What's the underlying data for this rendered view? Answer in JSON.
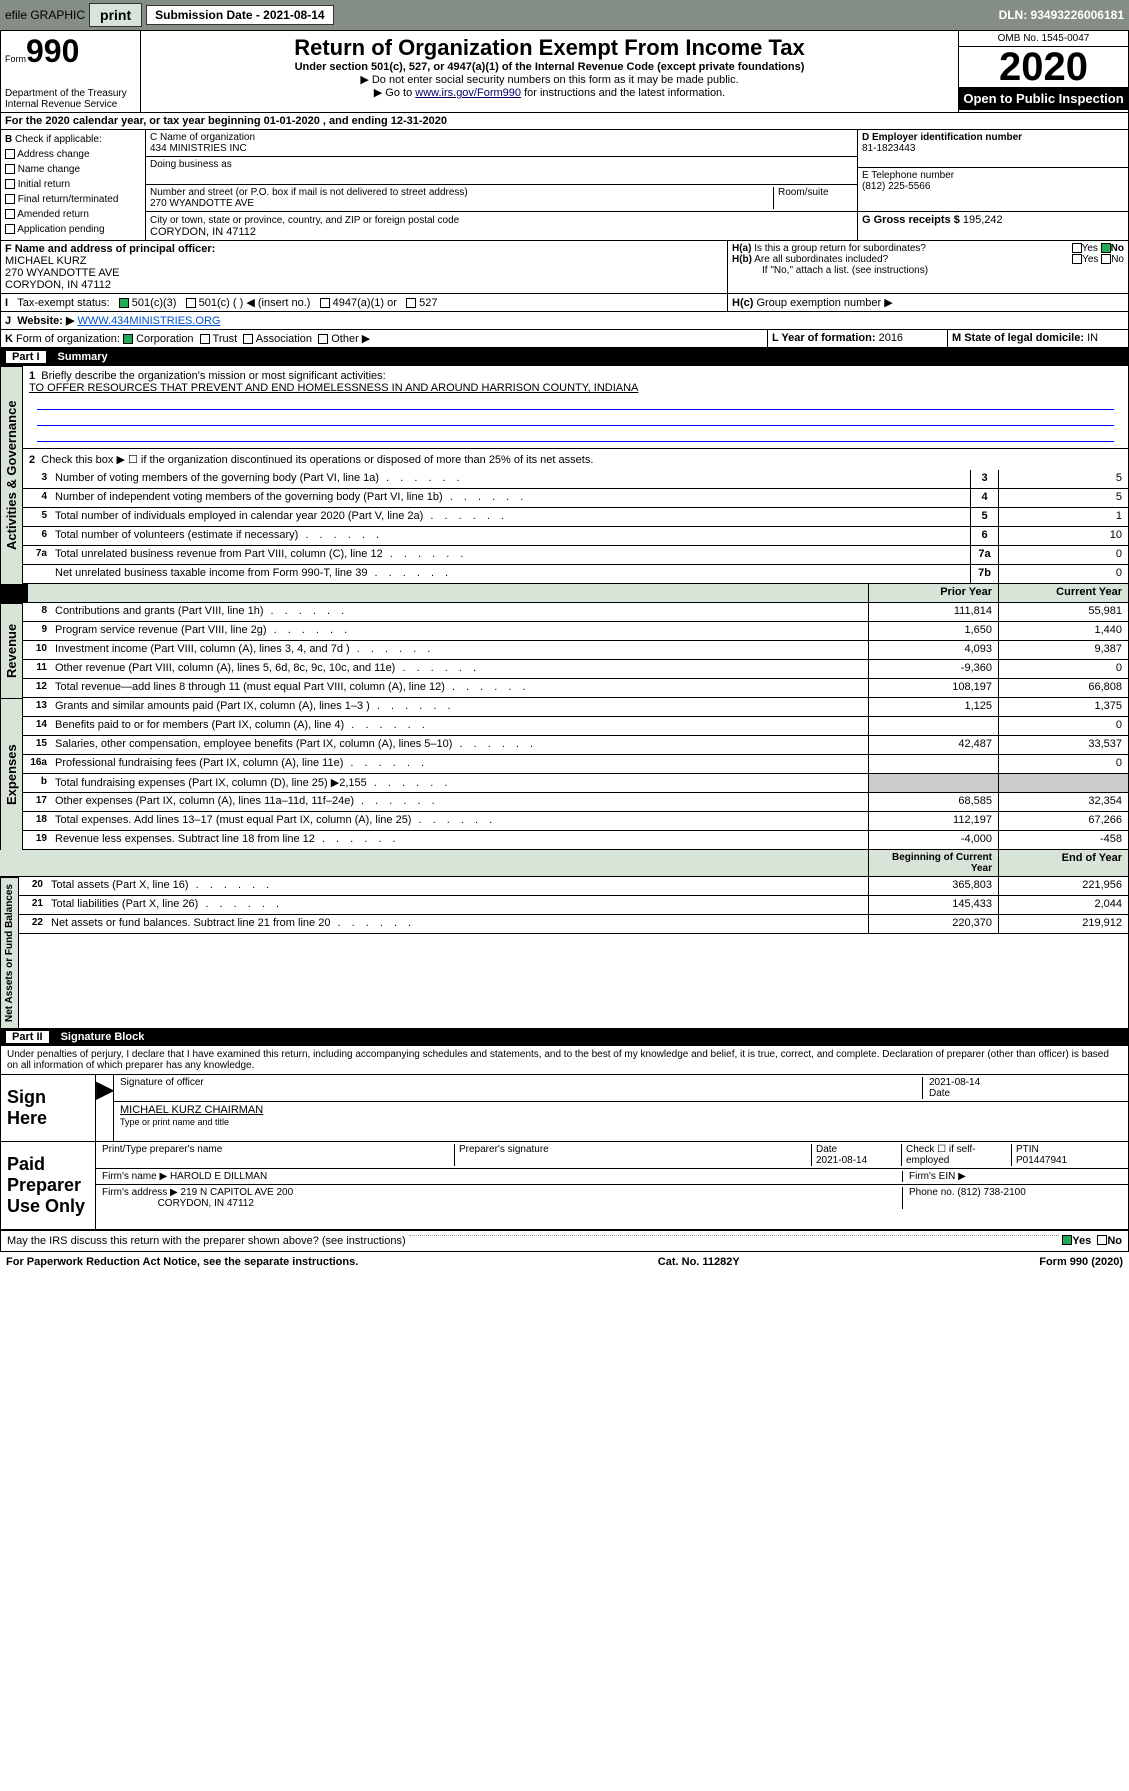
{
  "toolbar": {
    "efile": "efile GRAPHIC",
    "print": "print",
    "subdate_label": "Submission Date - 2021-08-14",
    "dln": "DLN: 93493226006181"
  },
  "header": {
    "form": "990",
    "form_prefix": "Form",
    "dept": "Department of the Treasury\nInternal Revenue Service",
    "title": "Return of Organization Exempt From Income Tax",
    "sub1": "Under section 501(c), 527, or 4947(a)(1) of the Internal Revenue Code (except private foundations)",
    "sub2": "▶ Do not enter social security numbers on this form as it may be made public.",
    "sub3_pre": "▶ Go to ",
    "sub3_link": "www.irs.gov/Form990",
    "sub3_post": " for instructions and the latest information.",
    "omb": "OMB No. 1545-0047",
    "year": "2020",
    "open": "Open to Public Inspection"
  },
  "a": {
    "line": "For the 2020 calendar year, or tax year beginning 01-01-2020   , and ending 12-31-2020"
  },
  "b": {
    "label": "Check if applicable:",
    "items": [
      "Address change",
      "Name change",
      "Initial return",
      "Final return/terminated",
      "Amended return",
      "Application pending"
    ]
  },
  "c": {
    "name_lbl": "C Name of organization",
    "name": "434 MINISTRIES INC",
    "dba_lbl": "Doing business as",
    "dba": "",
    "addr_lbl": "Number and street (or P.O. box if mail is not delivered to street address)",
    "room_lbl": "Room/suite",
    "addr": "270 WYANDOTTE AVE",
    "city_lbl": "City or town, state or province, country, and ZIP or foreign postal code",
    "city": "CORYDON, IN  47112"
  },
  "d": {
    "lbl": "D Employer identification number",
    "val": "81-1823443"
  },
  "e": {
    "lbl": "E Telephone number",
    "val": "(812) 225-5566"
  },
  "g": {
    "lbl": "G Gross receipts $",
    "val": "195,242"
  },
  "f": {
    "lbl": "F  Name and address of principal officer:",
    "val": "MICHAEL KURZ\n270 WYANDOTTE AVE\nCORYDON, IN  47112"
  },
  "h": {
    "a": "Is this a group return for subordinates?",
    "b": "Are all subordinates included?",
    "note": "If \"No,\" attach a list. (see instructions)",
    "c": "Group exemption number ▶",
    "ha_ans": "No"
  },
  "i": {
    "lbl": "Tax-exempt status:",
    "opts": [
      "501(c)(3)",
      "501(c) (  ) ◀ (insert no.)",
      "4947(a)(1) or",
      "527"
    ]
  },
  "j": {
    "lbl": "Website: ▶",
    "val": "WWW.434MINISTRIES.ORG"
  },
  "k": {
    "lbl": "Form of organization:",
    "opts": [
      "Corporation",
      "Trust",
      "Association",
      "Other ▶"
    ]
  },
  "l": {
    "lbl": "L Year of formation:",
    "val": "2016"
  },
  "m": {
    "lbl": "M State of legal domicile:",
    "val": "IN"
  },
  "part1": {
    "title": "Part I",
    "sub": "Summary"
  },
  "summary": {
    "l1_lbl": "Briefly describe the organization's mission or most significant activities:",
    "l1": "TO OFFER RESOURCES THAT PREVENT AND END HOMELESSNESS IN AND AROUND HARRISON COUNTY, INDIANA",
    "l2": "Check this box ▶ ☐  if the organization discontinued its operations or disposed of more than 25% of its net assets.",
    "lines": [
      {
        "n": "3",
        "t": "Number of voting members of the governing body (Part VI, line 1a)",
        "box": "3",
        "v": "5"
      },
      {
        "n": "4",
        "t": "Number of independent voting members of the governing body (Part VI, line 1b)",
        "box": "4",
        "v": "5"
      },
      {
        "n": "5",
        "t": "Total number of individuals employed in calendar year 2020 (Part V, line 2a)",
        "box": "5",
        "v": "1"
      },
      {
        "n": "6",
        "t": "Total number of volunteers (estimate if necessary)",
        "box": "6",
        "v": "10"
      },
      {
        "n": "7a",
        "t": "Total unrelated business revenue from Part VIII, column (C), line 12",
        "box": "7a",
        "v": "0"
      },
      {
        "n": "",
        "t": "Net unrelated business taxable income from Form 990-T, line 39",
        "box": "7b",
        "v": "0"
      }
    ],
    "col_hdr1": "Prior Year",
    "col_hdr2": "Current Year",
    "revenue": [
      {
        "n": "8",
        "t": "Contributions and grants (Part VIII, line 1h)",
        "p": "111,814",
        "c": "55,981"
      },
      {
        "n": "9",
        "t": "Program service revenue (Part VIII, line 2g)",
        "p": "1,650",
        "c": "1,440"
      },
      {
        "n": "10",
        "t": "Investment income (Part VIII, column (A), lines 3, 4, and 7d )",
        "p": "4,093",
        "c": "9,387"
      },
      {
        "n": "11",
        "t": "Other revenue (Part VIII, column (A), lines 5, 6d, 8c, 9c, 10c, and 11e)",
        "p": "-9,360",
        "c": "0"
      },
      {
        "n": "12",
        "t": "Total revenue—add lines 8 through 11 (must equal Part VIII, column (A), line 12)",
        "p": "108,197",
        "c": "66,808"
      }
    ],
    "expenses": [
      {
        "n": "13",
        "t": "Grants and similar amounts paid (Part IX, column (A), lines 1–3 )",
        "p": "1,125",
        "c": "1,375"
      },
      {
        "n": "14",
        "t": "Benefits paid to or for members (Part IX, column (A), line 4)",
        "p": "",
        "c": "0"
      },
      {
        "n": "15",
        "t": "Salaries, other compensation, employee benefits (Part IX, column (A), lines 5–10)",
        "p": "42,487",
        "c": "33,537"
      },
      {
        "n": "16a",
        "t": "Professional fundraising fees (Part IX, column (A), line 11e)",
        "p": "",
        "c": "0"
      },
      {
        "n": "b",
        "t": "Total fundraising expenses (Part IX, column (D), line 25) ▶2,155",
        "p": "—",
        "c": "—"
      },
      {
        "n": "17",
        "t": "Other expenses (Part IX, column (A), lines 11a–11d, 11f–24e)",
        "p": "68,585",
        "c": "32,354"
      },
      {
        "n": "18",
        "t": "Total expenses. Add lines 13–17 (must equal Part IX, column (A), line 25)",
        "p": "112,197",
        "c": "67,266"
      },
      {
        "n": "19",
        "t": "Revenue less expenses. Subtract line 18 from line 12",
        "p": "-4,000",
        "c": "-458"
      }
    ],
    "col_hdr3": "Beginning of Current Year",
    "col_hdr4": "End of Year",
    "balances": [
      {
        "n": "20",
        "t": "Total assets (Part X, line 16)",
        "p": "365,803",
        "c": "221,956"
      },
      {
        "n": "21",
        "t": "Total liabilities (Part X, line 26)",
        "p": "145,433",
        "c": "2,044"
      },
      {
        "n": "22",
        "t": "Net assets or fund balances. Subtract line 21 from line 20",
        "p": "220,370",
        "c": "219,912"
      }
    ]
  },
  "vlabels": {
    "gov": "Activities & Governance",
    "rev": "Revenue",
    "exp": "Expenses",
    "bal": "Net Assets or Fund Balances"
  },
  "part2": {
    "title": "Part II",
    "sub": "Signature Block",
    "perjury": "Under penalties of perjury, I declare that I have examined this return, including accompanying schedules and statements, and to the best of my knowledge and belief, it is true, correct, and complete. Declaration of preparer (other than officer) is based on all information of which preparer has any knowledge."
  },
  "sign": {
    "here": "Sign Here",
    "sig_lbl": "Signature of officer",
    "date_lbl": "Date",
    "date": "2021-08-14",
    "name": "MICHAEL KURZ CHAIRMAN",
    "name_lbl": "Type or print name and title"
  },
  "paid": {
    "title": "Paid Preparer Use Only",
    "h1": "Print/Type preparer's name",
    "h2": "Preparer's signature",
    "h3": "Date",
    "h4": "Check ☐ if self-employed",
    "h5": "PTIN",
    "date": "2021-08-14",
    "ptin": "P01447941",
    "firm_lbl": "Firm's name  ▶",
    "firm": "HAROLD E DILLMAN",
    "ein_lbl": "Firm's EIN ▶",
    "addr_lbl": "Firm's address ▶",
    "addr": "219 N CAPITOL AVE 200",
    "city": "CORYDON, IN  47112",
    "phone_lbl": "Phone no.",
    "phone": "(812) 738-2100"
  },
  "bottom": {
    "q": "May the IRS discuss this return with the preparer shown above? (see instructions)",
    "yes": "Yes",
    "no": "No",
    "pra": "For Paperwork Reduction Act Notice, see the separate instructions.",
    "cat": "Cat. No. 11282Y",
    "form": "Form 990 (2020)"
  }
}
